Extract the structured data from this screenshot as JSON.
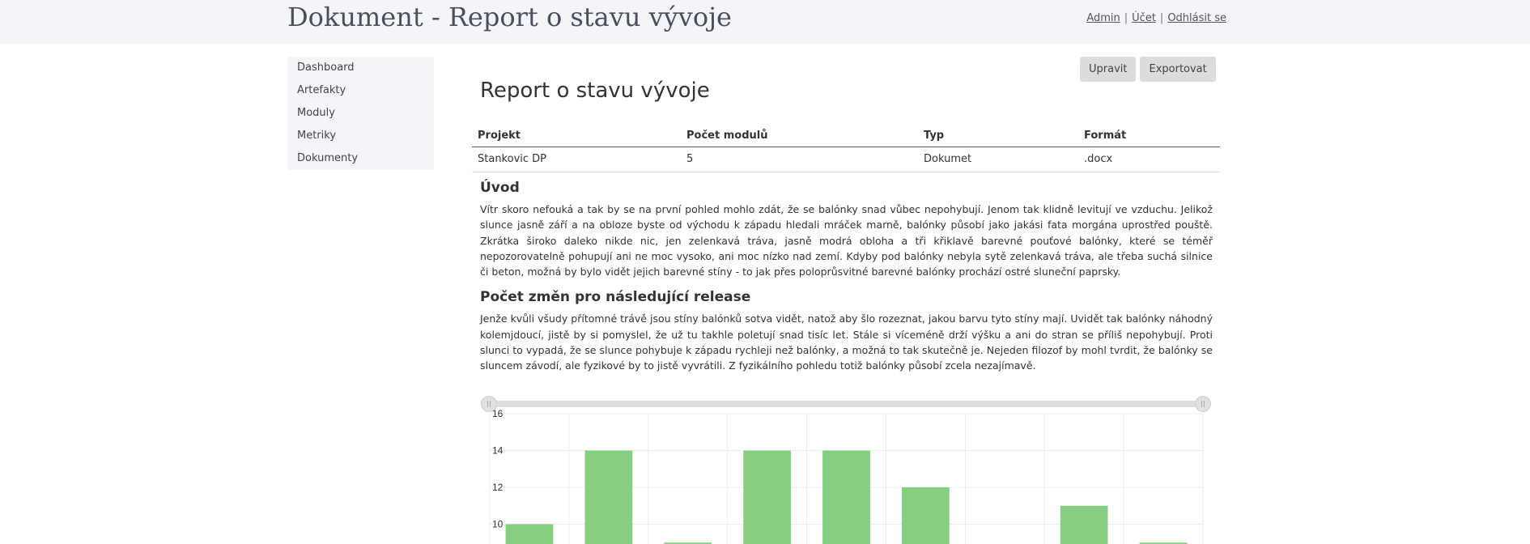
{
  "header": {
    "app_title": "Dokument - Report o stavu vývoje",
    "nav": [
      {
        "label": "Admin"
      },
      {
        "label": "Účet"
      },
      {
        "label": "Odhlásit se"
      }
    ],
    "separator": "|"
  },
  "sidebar": {
    "items": [
      {
        "label": "Dashboard"
      },
      {
        "label": "Artefakty"
      },
      {
        "label": "Moduly"
      },
      {
        "label": "Metriky"
      },
      {
        "label": "Dokumenty"
      }
    ]
  },
  "toolbar": {
    "edit_label": "Upravit",
    "export_label": "Exportovat"
  },
  "document": {
    "title": "Report o stavu vývoje",
    "meta_table": {
      "headers": [
        "Projekt",
        "Počet modulů",
        "Typ",
        "Formát"
      ],
      "rows": [
        [
          "Stankovic DP",
          "5",
          "Dokumet",
          ".docx"
        ]
      ]
    },
    "sections": [
      {
        "heading": "Úvod",
        "text": "Vítr skoro nefouká a tak by se na první pohled mohlo zdát, že se balónky snad vůbec nepohybují. Jenom tak klidně levitují ve vzduchu. Jelikož slunce jasně září a na obloze byste od východu k západu hledali mráček marně, balónky působí jako jakási fata morgána uprostřed pouště. Zkrátka široko daleko nikde nic, jen zelenkavá tráva, jasně modrá obloha a tři křiklavě barevné pouťové balónky, které se téměř nepozorovatelně pohupují ani ne moc vysoko, ani moc nízko nad zemí. Kdyby pod balónky nebyla sytě zelenkavá tráva, ale třeba suchá silnice či beton, možná by bylo vidět jejich barevné stíny - to jak přes poloprůsvitné barevné balónky prochází ostré sluneční paprsky."
      },
      {
        "heading": "Počet změn pro následující release",
        "text": "Jenže kvůli všudy přítomné trávě jsou stíny balónků sotva vidět, natož aby šlo rozeznat, jakou barvu tyto stíny mají. Uvidět tak balónky náhodný kolemjdoucí, jistě by si pomyslel, že už tu takhle poletují snad tisíc let. Stále si víceméně drží výšku a ani do stran se příliš nepohybují. Proti slunci to vypadá, že se slunce pohybuje k západu rychleji než balónky, a možná to tak skutečně je. Nejeden filozof by mohl tvrdit, že balónky se sluncem závodí, ale fyzikové by to jistě vyvrátili. Z fyzikálního pohledu totiž balónky působí zcela nezajímavě."
      }
    ]
  },
  "slider": {
    "start_fraction": 0.0,
    "end_fraction": 1.0
  },
  "chart_data": {
    "type": "bar",
    "values": [
      10,
      14,
      9,
      14,
      14,
      12,
      null,
      11,
      9
    ],
    "y_ticks": [
      16,
      14,
      12,
      10
    ],
    "ylim": [
      9,
      16
    ],
    "bar_color": "#86cf82",
    "grid": true
  },
  "colors": {
    "header_bg": "#f4f5f9",
    "sidebar_bg": "#f4f5f9",
    "button_bg": "#dcdcdc"
  }
}
